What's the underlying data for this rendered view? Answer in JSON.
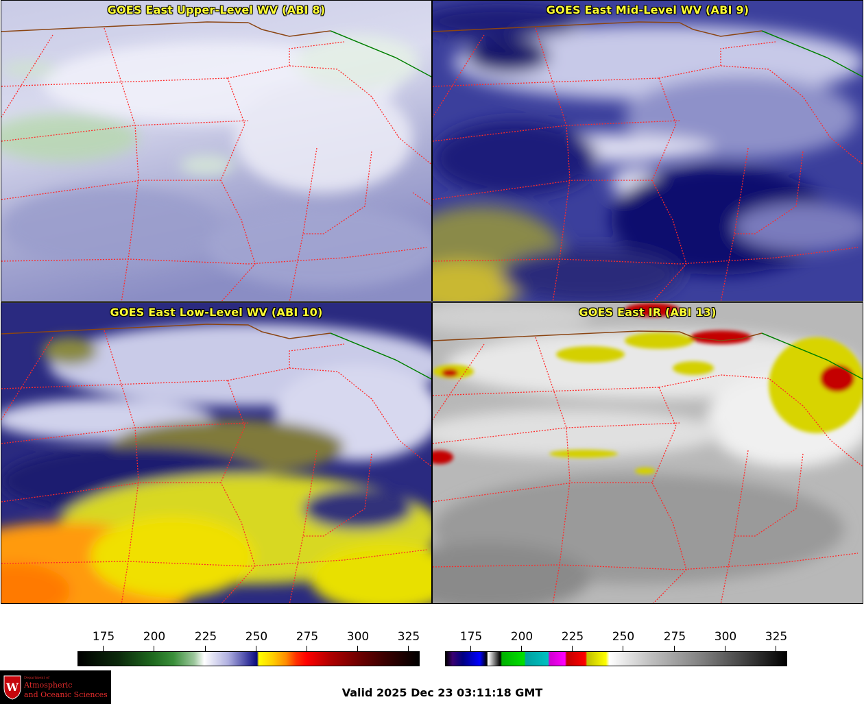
{
  "panels": [
    {
      "title": "GOES East Upper-Level WV (ABI 8)"
    },
    {
      "title": "GOES East Mid-Level WV (ABI 9)"
    },
    {
      "title": "GOES East Low-Level WV (ABI 10)"
    },
    {
      "title": "GOES East IR (ABI 13)"
    }
  ],
  "colorbars": {
    "wv": {
      "ticks": [
        "175",
        "200",
        "225",
        "250",
        "275",
        "300",
        "325"
      ]
    },
    "ir": {
      "ticks": [
        "175",
        "200",
        "225",
        "250",
        "275",
        "300",
        "325"
      ]
    }
  },
  "logo": {
    "line1": "Department of",
    "line2": "Atmospheric",
    "line3": "and Oceanic Sciences",
    "seal_letter": "W"
  },
  "valid_time": "Valid 2025 Dec 23 03:11:18 GMT",
  "colors": {
    "title_text": "#ffff33",
    "state_borders": "#ff2a2a",
    "country_border": "#8b4513",
    "canada_line": "#008000",
    "logo_text": "#e32b2b"
  }
}
